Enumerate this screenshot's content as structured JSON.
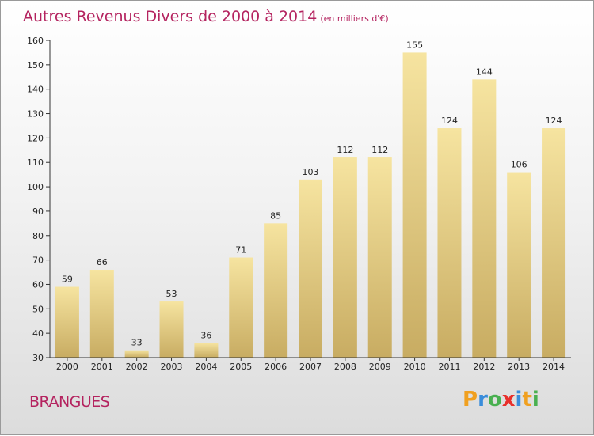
{
  "header": {
    "title": "Autres Revenus Divers de 2000 à 2014",
    "subtitle": "(en milliers d'€)"
  },
  "footer": {
    "place": "BRANGUES"
  },
  "brand": {
    "letters": [
      "P",
      "r",
      "o",
      "x",
      "i",
      "t",
      "i"
    ],
    "colors": [
      "#f0a020",
      "#3a8ddb",
      "#49b050",
      "#e8302b",
      "#3a8ddb",
      "#f0a020",
      "#49b050"
    ]
  },
  "colors": {
    "bar_light": "#f6e4a0",
    "bar_dark": "#c8ac62",
    "axis": "#333333"
  },
  "chart_data": {
    "type": "bar",
    "title": "Autres Revenus Divers de 2000 à 2014",
    "subtitle": "(en milliers d'€)",
    "categories": [
      "2000",
      "2001",
      "2002",
      "2003",
      "2004",
      "2005",
      "2006",
      "2007",
      "2008",
      "2009",
      "2010",
      "2011",
      "2012",
      "2013",
      "2014"
    ],
    "values": [
      59,
      66,
      33,
      53,
      36,
      71,
      85,
      103,
      112,
      112,
      155,
      124,
      144,
      106,
      124
    ],
    "ylim": [
      30,
      160
    ],
    "yticks": [
      30,
      40,
      50,
      60,
      70,
      80,
      90,
      100,
      110,
      120,
      130,
      140,
      150,
      160
    ],
    "grid": false,
    "xlabel": "",
    "ylabel": ""
  }
}
